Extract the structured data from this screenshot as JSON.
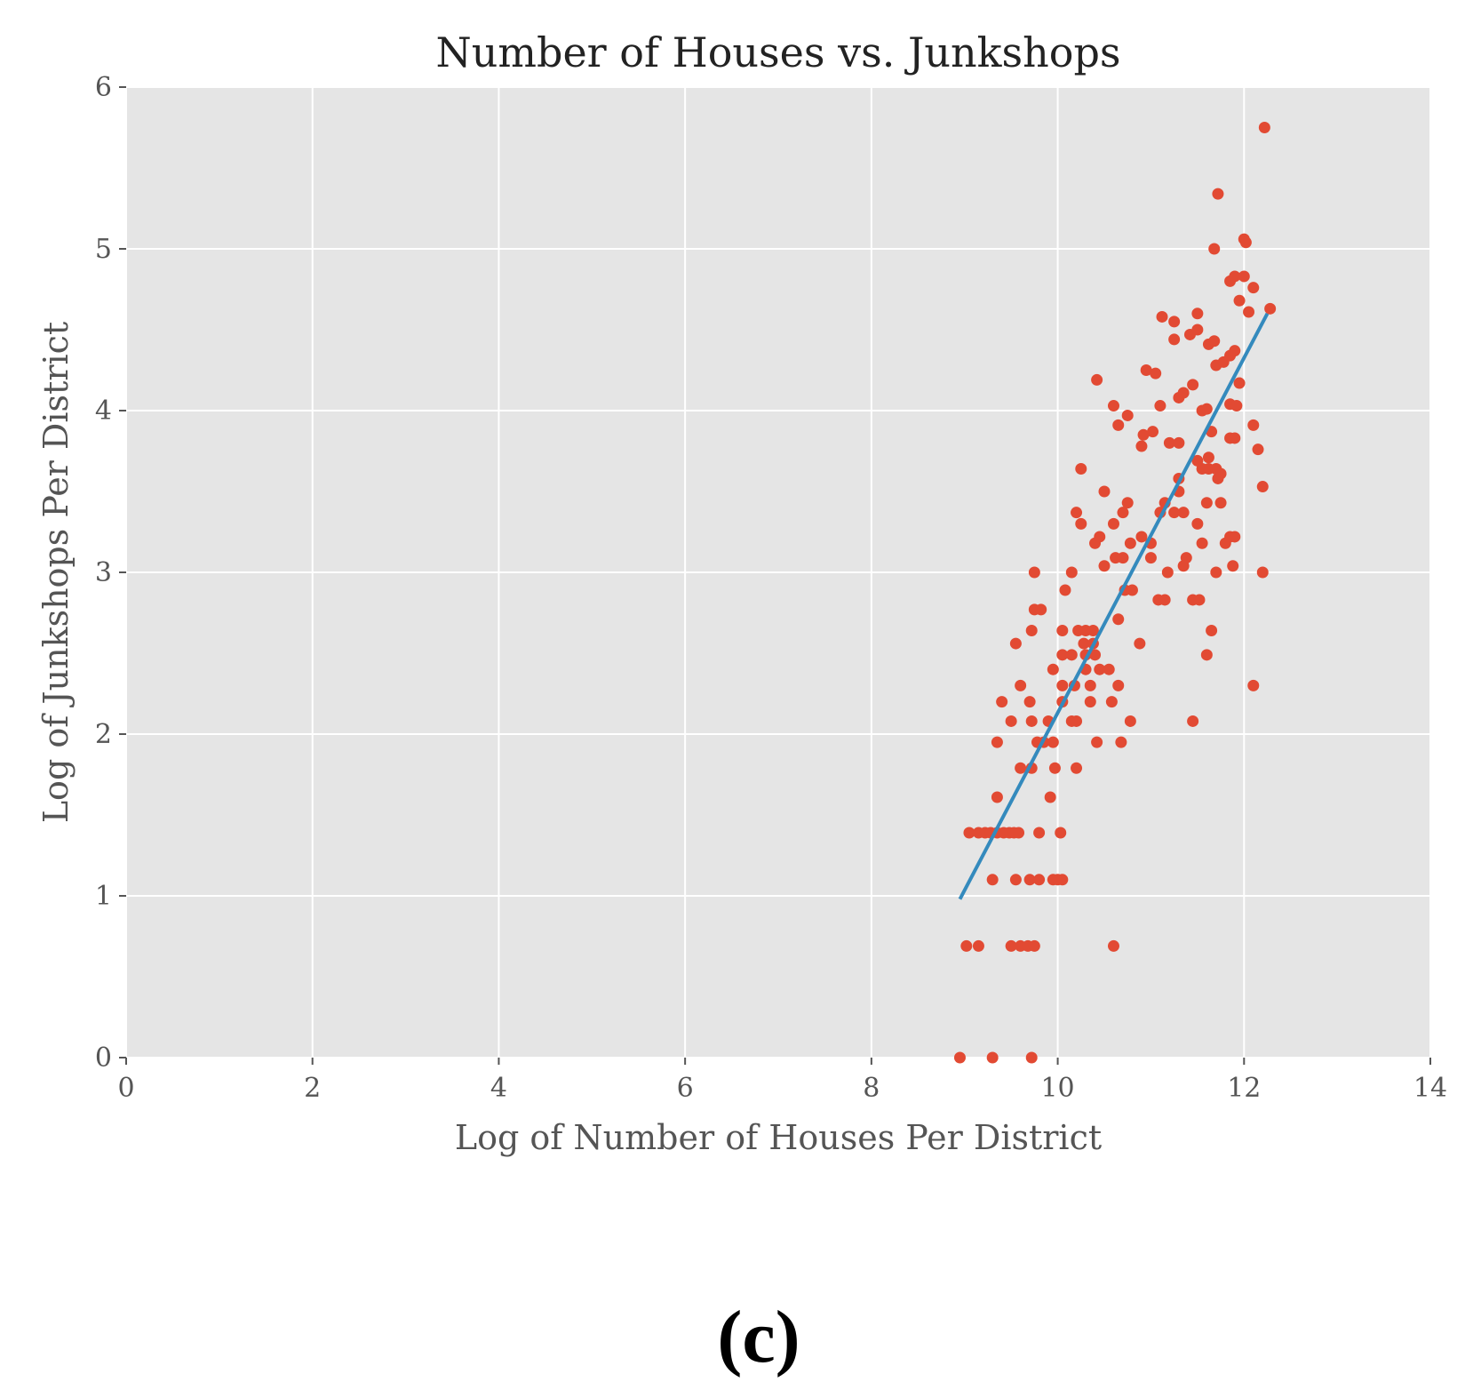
{
  "chart_data": {
    "type": "scatter",
    "title": "Number of Houses vs. Junkshops",
    "xlabel": "Log of Number of Houses Per District",
    "ylabel": "Log of Junkshops Per District",
    "xlim": [
      0,
      14
    ],
    "ylim": [
      0,
      6
    ],
    "xticks": [
      "0",
      "2",
      "4",
      "6",
      "8",
      "10",
      "12",
      "14"
    ],
    "yticks": [
      "0",
      "1",
      "2",
      "3",
      "4",
      "5",
      "6"
    ],
    "grid": true,
    "point_color": "#e24a33",
    "line_color": "#348abd",
    "background_color": "#e5e5e5",
    "points": [
      [
        8.95,
        0.0
      ],
      [
        9.3,
        0.0
      ],
      [
        9.72,
        0.0
      ],
      [
        9.02,
        0.69
      ],
      [
        9.15,
        0.69
      ],
      [
        9.5,
        0.69
      ],
      [
        9.6,
        0.69
      ],
      [
        9.68,
        0.69
      ],
      [
        9.75,
        0.69
      ],
      [
        10.6,
        0.69
      ],
      [
        9.3,
        1.1
      ],
      [
        9.55,
        1.1
      ],
      [
        9.7,
        1.1
      ],
      [
        9.8,
        1.1
      ],
      [
        9.95,
        1.1
      ],
      [
        10.0,
        1.1
      ],
      [
        10.05,
        1.1
      ],
      [
        9.05,
        1.39
      ],
      [
        9.15,
        1.39
      ],
      [
        9.22,
        1.39
      ],
      [
        9.28,
        1.39
      ],
      [
        9.35,
        1.39
      ],
      [
        9.42,
        1.39
      ],
      [
        9.48,
        1.39
      ],
      [
        9.53,
        1.39
      ],
      [
        9.58,
        1.39
      ],
      [
        9.8,
        1.39
      ],
      [
        10.03,
        1.39
      ],
      [
        9.35,
        1.61
      ],
      [
        9.92,
        1.61
      ],
      [
        9.6,
        1.79
      ],
      [
        9.72,
        1.79
      ],
      [
        9.97,
        1.79
      ],
      [
        10.2,
        1.79
      ],
      [
        9.35,
        1.95
      ],
      [
        9.78,
        1.95
      ],
      [
        9.85,
        1.95
      ],
      [
        9.95,
        1.95
      ],
      [
        10.42,
        1.95
      ],
      [
        10.68,
        1.95
      ],
      [
        9.5,
        2.08
      ],
      [
        9.72,
        2.08
      ],
      [
        9.9,
        2.08
      ],
      [
        10.2,
        2.08
      ],
      [
        10.15,
        2.08
      ],
      [
        10.78,
        2.08
      ],
      [
        11.45,
        2.08
      ],
      [
        9.4,
        2.2
      ],
      [
        9.7,
        2.2
      ],
      [
        10.05,
        2.2
      ],
      [
        10.35,
        2.2
      ],
      [
        10.58,
        2.2
      ],
      [
        9.6,
        2.3
      ],
      [
        10.05,
        2.3
      ],
      [
        10.18,
        2.3
      ],
      [
        10.35,
        2.3
      ],
      [
        10.65,
        2.3
      ],
      [
        12.1,
        2.3
      ],
      [
        9.95,
        2.4
      ],
      [
        10.3,
        2.4
      ],
      [
        10.45,
        2.4
      ],
      [
        10.55,
        2.4
      ],
      [
        10.05,
        2.49
      ],
      [
        10.15,
        2.49
      ],
      [
        10.3,
        2.49
      ],
      [
        10.4,
        2.49
      ],
      [
        9.55,
        2.56
      ],
      [
        10.28,
        2.56
      ],
      [
        10.38,
        2.56
      ],
      [
        10.88,
        2.56
      ],
      [
        9.72,
        2.64
      ],
      [
        10.05,
        2.64
      ],
      [
        10.22,
        2.64
      ],
      [
        10.3,
        2.64
      ],
      [
        10.38,
        2.64
      ],
      [
        11.65,
        2.64
      ],
      [
        10.65,
        2.71
      ],
      [
        9.75,
        2.77
      ],
      [
        9.82,
        2.77
      ],
      [
        11.08,
        2.83
      ],
      [
        11.15,
        2.83
      ],
      [
        11.45,
        2.83
      ],
      [
        11.52,
        2.83
      ],
      [
        10.08,
        2.89
      ],
      [
        10.72,
        2.89
      ],
      [
        10.8,
        2.89
      ],
      [
        11.6,
        2.49
      ],
      [
        9.75,
        3.0
      ],
      [
        10.15,
        3.0
      ],
      [
        11.18,
        3.0
      ],
      [
        11.7,
        3.0
      ],
      [
        12.2,
        3.0
      ],
      [
        10.5,
        3.04
      ],
      [
        11.35,
        3.04
      ],
      [
        11.88,
        3.04
      ],
      [
        10.62,
        3.09
      ],
      [
        10.7,
        3.09
      ],
      [
        11.0,
        3.09
      ],
      [
        11.38,
        3.09
      ],
      [
        10.4,
        3.18
      ],
      [
        10.78,
        3.18
      ],
      [
        11.0,
        3.18
      ],
      [
        11.55,
        3.18
      ],
      [
        11.8,
        3.18
      ],
      [
        10.45,
        3.22
      ],
      [
        10.9,
        3.22
      ],
      [
        11.85,
        3.22
      ],
      [
        11.9,
        3.22
      ],
      [
        10.25,
        3.3
      ],
      [
        10.6,
        3.3
      ],
      [
        11.5,
        3.3
      ],
      [
        10.2,
        3.37
      ],
      [
        10.7,
        3.37
      ],
      [
        11.1,
        3.37
      ],
      [
        11.25,
        3.37
      ],
      [
        11.35,
        3.37
      ],
      [
        10.75,
        3.43
      ],
      [
        11.15,
        3.43
      ],
      [
        11.6,
        3.43
      ],
      [
        11.75,
        3.43
      ],
      [
        10.5,
        3.5
      ],
      [
        11.3,
        3.5
      ],
      [
        12.2,
        3.53
      ],
      [
        11.3,
        3.58
      ],
      [
        11.72,
        3.58
      ],
      [
        11.55,
        3.64
      ],
      [
        11.62,
        3.64
      ],
      [
        11.7,
        3.64
      ],
      [
        11.75,
        3.61
      ],
      [
        10.25,
        3.64
      ],
      [
        11.62,
        3.71
      ],
      [
        11.5,
        3.69
      ],
      [
        12.15,
        3.76
      ],
      [
        10.9,
        3.78
      ],
      [
        11.2,
        3.8
      ],
      [
        11.3,
        3.8
      ],
      [
        11.85,
        3.83
      ],
      [
        11.9,
        3.83
      ],
      [
        11.02,
        3.87
      ],
      [
        11.65,
        3.87
      ],
      [
        12.1,
        3.91
      ],
      [
        10.65,
        3.91
      ],
      [
        10.92,
        3.85
      ],
      [
        10.75,
        3.97
      ],
      [
        11.55,
        4.0
      ],
      [
        11.6,
        4.01
      ],
      [
        10.6,
        4.03
      ],
      [
        11.1,
        4.03
      ],
      [
        11.85,
        4.04
      ],
      [
        11.92,
        4.03
      ],
      [
        11.3,
        4.08
      ],
      [
        11.35,
        4.11
      ],
      [
        11.45,
        4.16
      ],
      [
        11.95,
        4.17
      ],
      [
        10.42,
        4.19
      ],
      [
        11.05,
        4.23
      ],
      [
        10.95,
        4.25
      ],
      [
        11.7,
        4.28
      ],
      [
        11.78,
        4.3
      ],
      [
        11.85,
        4.34
      ],
      [
        11.9,
        4.37
      ],
      [
        11.62,
        4.41
      ],
      [
        11.68,
        4.43
      ],
      [
        11.25,
        4.44
      ],
      [
        11.42,
        4.47
      ],
      [
        11.5,
        4.5
      ],
      [
        11.25,
        4.55
      ],
      [
        11.12,
        4.58
      ],
      [
        11.5,
        4.6
      ],
      [
        12.05,
        4.61
      ],
      [
        12.28,
        4.63
      ],
      [
        11.95,
        4.68
      ],
      [
        12.1,
        4.76
      ],
      [
        11.85,
        4.8
      ],
      [
        11.9,
        4.83
      ],
      [
        12.0,
        4.83
      ],
      [
        11.68,
        5.0
      ],
      [
        12.0,
        5.06
      ],
      [
        12.02,
        5.04
      ],
      [
        11.72,
        5.34
      ],
      [
        12.22,
        5.75
      ]
    ],
    "fit_line": [
      [
        8.95,
        0.98
      ],
      [
        12.25,
        4.6
      ]
    ],
    "panel_label": "(c)"
  }
}
